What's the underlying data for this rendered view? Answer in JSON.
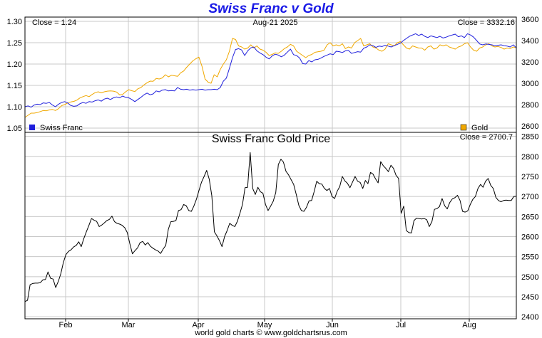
{
  "title": "Swiss Franc v Gold",
  "footer": "world gold charts © www.goldchartsrus.com",
  "colors": {
    "franc": "#1f1fdc",
    "gold": "#f0a800",
    "price": "#000000",
    "grid": "#c8c8c8"
  },
  "x_labels": [
    "Feb",
    "Mar",
    "Apr",
    "May",
    "Jun",
    "Jul",
    "Aug"
  ],
  "chart_data": [
    {
      "type": "line",
      "panel": "top",
      "date_label": "Aug-21  2025",
      "close_left": "Close = 1.24",
      "close_right": "Close = 3332.16",
      "y_left_ticks": [
        "1.30",
        "1.25",
        "1.20",
        "1.15",
        "1.10",
        "1.05"
      ],
      "y_left_lim": [
        1.04,
        1.31
      ],
      "y_right_ticks": [
        "3600",
        "3400",
        "3200",
        "3000",
        "2800",
        "2600"
      ],
      "y_right_lim": [
        2540,
        3620
      ],
      "legend": [
        "Swiss Franc",
        "Gold"
      ],
      "series": [
        {
          "name": "Swiss Franc",
          "axis": "left",
          "color": "#1f1fdc",
          "values": [
            1.1,
            1.102,
            1.099,
            1.104,
            1.106,
            1.105,
            1.109,
            1.108,
            1.11,
            1.104,
            1.1,
            1.106,
            1.11,
            1.112,
            1.109,
            1.103,
            1.101,
            1.102,
            1.107,
            1.11,
            1.108,
            1.112,
            1.111,
            1.114,
            1.116,
            1.113,
            1.118,
            1.12,
            1.117,
            1.121,
            1.123,
            1.121,
            1.125,
            1.122,
            1.121,
            1.117,
            1.112,
            1.117,
            1.122,
            1.128,
            1.132,
            1.128,
            1.13,
            1.137,
            1.135,
            1.139,
            1.14,
            1.137,
            1.138,
            1.137,
            1.145,
            1.141,
            1.14,
            1.141,
            1.139,
            1.14,
            1.139,
            1.14,
            1.141,
            1.139,
            1.14,
            1.14,
            1.141,
            1.14,
            1.145,
            1.16,
            1.167,
            1.19,
            1.215,
            1.234,
            1.236,
            1.233,
            1.22,
            1.231,
            1.238,
            1.24,
            1.231,
            1.226,
            1.222,
            1.216,
            1.212,
            1.219,
            1.223,
            1.221,
            1.217,
            1.221,
            1.228,
            1.235,
            1.222,
            1.22,
            1.214,
            1.201,
            1.2,
            1.208,
            1.205,
            1.21,
            1.211,
            1.214,
            1.218,
            1.221,
            1.224,
            1.222,
            1.23,
            1.229,
            1.227,
            1.231,
            1.232,
            1.225,
            1.227,
            1.229,
            1.228,
            1.237,
            1.24,
            1.245,
            1.243,
            1.239,
            1.242,
            1.241,
            1.244,
            1.242,
            1.24,
            1.243,
            1.246,
            1.249,
            1.255,
            1.26,
            1.265,
            1.268,
            1.271,
            1.267,
            1.27,
            1.265,
            1.262,
            1.266,
            1.264,
            1.262,
            1.265,
            1.261,
            1.263,
            1.266,
            1.268,
            1.27,
            1.264,
            1.266,
            1.262,
            1.271,
            1.268,
            1.263,
            1.255,
            1.247,
            1.245,
            1.247,
            1.246,
            1.245,
            1.243,
            1.244,
            1.245,
            1.243,
            1.242,
            1.24,
            1.245,
            1.238
          ]
        },
        {
          "name": "Gold",
          "axis": "right",
          "color": "#f0a800",
          "values": [
            2680,
            2700,
            2720,
            2720,
            2725,
            2735,
            2745,
            2742,
            2750,
            2755,
            2745,
            2762,
            2790,
            2800,
            2815,
            2825,
            2830,
            2842,
            2862,
            2875,
            2885,
            2875,
            2895,
            2912,
            2920,
            2910,
            2920,
            2926,
            2928,
            2926,
            2918,
            2892,
            2895,
            2920,
            2940,
            2930,
            2922,
            2948,
            2960,
            2985,
            3005,
            3020,
            3018,
            3045,
            3040,
            3050,
            3080,
            3060,
            3075,
            3070,
            3065,
            3098,
            3115,
            3150,
            3180,
            3210,
            3230,
            3245,
            3160,
            3040,
            3010,
            3000,
            3080,
            3060,
            3130,
            3180,
            3220,
            3300,
            3420,
            3410,
            3350,
            3340,
            3320,
            3330,
            3360,
            3330,
            3350,
            3320,
            3310,
            3290,
            3260,
            3270,
            3285,
            3280,
            3300,
            3325,
            3340,
            3365,
            3350,
            3300,
            3280,
            3260,
            3240,
            3260,
            3270,
            3290,
            3295,
            3300,
            3310,
            3360,
            3380,
            3350,
            3360,
            3350,
            3370,
            3325,
            3340,
            3330,
            3380,
            3400,
            3420,
            3350,
            3360,
            3370,
            3340,
            3330,
            3310,
            3300,
            3320,
            3370,
            3360,
            3350,
            3380,
            3390,
            3360,
            3330,
            3320,
            3350,
            3340,
            3330,
            3330,
            3310,
            3340,
            3350,
            3320,
            3330,
            3360,
            3350,
            3360,
            3340,
            3330,
            3320,
            3340,
            3350,
            3370,
            3380,
            3340,
            3310,
            3300,
            3330,
            3340,
            3360,
            3370,
            3350,
            3340,
            3345,
            3335,
            3320,
            3330,
            3325,
            3340,
            3332
          ]
        }
      ]
    },
    {
      "type": "line",
      "panel": "bottom",
      "title": "Swiss Franc Gold Price",
      "close_right": "Close = 2700.7",
      "y_ticks": [
        "2850",
        "2800",
        "2750",
        "2700",
        "2650",
        "2600",
        "2550",
        "2500",
        "2450",
        "2400"
      ],
      "ylim": [
        2395,
        2860
      ],
      "series": [
        {
          "name": "",
          "color": "#000000",
          "values": [
            2438,
            2441,
            2480,
            2483,
            2484,
            2484,
            2485,
            2492,
            2493,
            2512,
            2496,
            2494,
            2473,
            2488,
            2507,
            2535,
            2555,
            2563,
            2567,
            2574,
            2578,
            2587,
            2575,
            2595,
            2612,
            2628,
            2645,
            2641,
            2638,
            2625,
            2629,
            2634,
            2640,
            2643,
            2651,
            2637,
            2633,
            2631,
            2628,
            2622,
            2610,
            2582,
            2557,
            2565,
            2572,
            2585,
            2588,
            2579,
            2585,
            2576,
            2571,
            2567,
            2564,
            2558,
            2569,
            2578,
            2618,
            2637,
            2638,
            2640,
            2665,
            2667,
            2680,
            2677,
            2665,
            2663,
            2676,
            2693,
            2715,
            2736,
            2750,
            2765,
            2743,
            2702,
            2612,
            2602,
            2590,
            2575,
            2600,
            2615,
            2633,
            2628,
            2625,
            2638,
            2658,
            2680,
            2722,
            2723,
            2810,
            2720,
            2705,
            2723,
            2712,
            2708,
            2680,
            2665,
            2676,
            2688,
            2710,
            2780,
            2793,
            2786,
            2763,
            2754,
            2742,
            2730,
            2705,
            2678,
            2665,
            2663,
            2673,
            2689,
            2690,
            2712,
            2738,
            2732,
            2731,
            2720,
            2715,
            2720,
            2700,
            2695,
            2713,
            2725,
            2750,
            2739,
            2733,
            2722,
            2736,
            2750,
            2738,
            2735,
            2720,
            2740,
            2732,
            2760,
            2756,
            2744,
            2734,
            2787,
            2777,
            2770,
            2762,
            2778,
            2770,
            2753,
            2745,
            2658,
            2676,
            2615,
            2610,
            2609,
            2640,
            2646,
            2645,
            2644,
            2645,
            2642,
            2625,
            2637,
            2668,
            2670,
            2675,
            2695,
            2677,
            2669,
            2685,
            2694,
            2697,
            2703,
            2690,
            2663,
            2661,
            2664,
            2680,
            2693,
            2700,
            2720,
            2730,
            2723,
            2738,
            2745,
            2728,
            2720,
            2698,
            2690,
            2687,
            2690,
            2691,
            2690,
            2690,
            2700,
            2700.7
          ]
        }
      ]
    }
  ]
}
